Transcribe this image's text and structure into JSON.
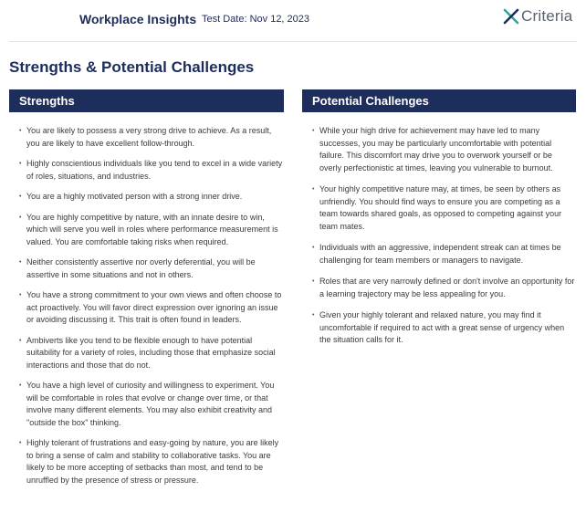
{
  "header": {
    "brand": "Workplace Insights",
    "test_date": "Test Date: Nov 12, 2023",
    "logo_text": "Criteria",
    "logo_icon": "criteria-x-logo",
    "brand_color": "#1d2d5c",
    "logo_accent_colors": [
      "#2aa5a0",
      "#1d2d5c"
    ]
  },
  "page_title": "Strengths & Potential Challenges",
  "strengths": {
    "heading": "Strengths",
    "items": [
      "You are likely to possess a very strong drive to achieve. As a result, you are likely to have excellent follow-through.",
      "Highly conscientious individuals like you tend to excel in a wide variety of roles, situations, and industries.",
      "You are a highly motivated person with a strong inner drive.",
      "You are highly competitive by nature, with an innate desire to win, which will serve you well in roles where performance measurement is valued. You are comfortable taking risks when required.",
      "Neither consistently assertive nor overly deferential, you will be assertive in some situations and not in others.",
      "You have a strong commitment to your own views and often choose to act proactively. You will favor direct expression over ignoring an issue or avoiding discussing it. This trait is often found in leaders.",
      "Ambiverts like you tend to be flexible enough to have potential suitability for a variety of roles, including those that emphasize social interactions and those that do not.",
      "You have a high level of curiosity and willingness to experiment. You will be comfortable in roles that evolve or change over time, or that involve many different elements. You may also exhibit creativity and \"outside the box\" thinking.",
      "Highly tolerant of frustrations and easy-going by nature, you are likely to bring a sense of calm and stability to collaborative tasks. You are likely to be more accepting of setbacks than most, and tend to be unruffled by the presence of stress or pressure."
    ]
  },
  "challenges": {
    "heading": "Potential Challenges",
    "items": [
      "While your high drive for achievement may have led to many successes, you may be particularly uncomfortable with potential failure. This discomfort may drive you to overwork yourself or be overly perfectionistic at times, leaving you vulnerable to burnout.",
      "Your highly competitive nature may, at times, be seen by others as unfriendly. You should find ways to ensure you are competing as a team towards shared goals, as opposed to competing against your team mates.",
      "Individuals with an aggressive, independent streak can at times be challenging for team members or managers to navigate.",
      "Roles that are very narrowly defined or don't involve an opportunity for a learning trajectory may be less appealing for you.",
      "Given your highly tolerant and relaxed nature, you may find it uncomfortable if required to act with a great sense of urgency when the situation calls for it."
    ]
  }
}
